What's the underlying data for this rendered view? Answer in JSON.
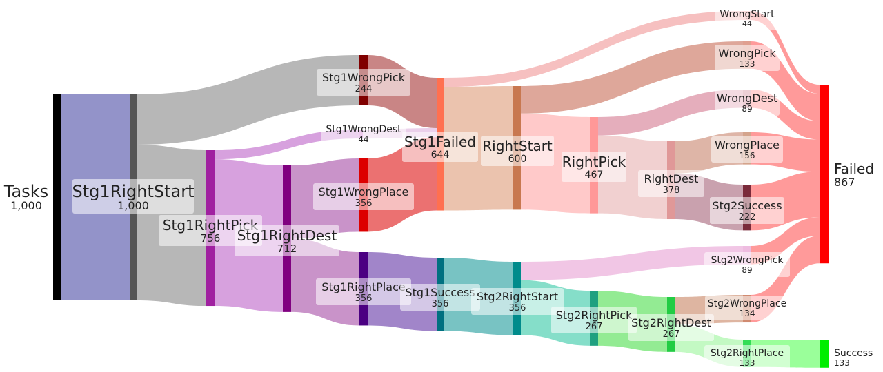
{
  "chart_data": {
    "type": "sankey",
    "title": "",
    "nodes": [
      {
        "id": "Tasks",
        "label": "Tasks",
        "value_label": "1,000",
        "value": 1000,
        "color": "#000000"
      },
      {
        "id": "Stg1RightStart",
        "label": "Stg1RightStart",
        "value_label": "1,000",
        "value": 1000,
        "color": "#555555"
      },
      {
        "id": "Stg1RightPick",
        "label": "Stg1RightPick",
        "value_label": "756",
        "value": 756,
        "color": "#a020a0"
      },
      {
        "id": "Stg1RightDest",
        "label": "Stg1RightDest",
        "value_label": "712",
        "value": 712,
        "color": "#800080"
      },
      {
        "id": "Stg1WrongPick",
        "label": "Stg1WrongPick",
        "value_label": "244",
        "value": 244,
        "color": "#800000"
      },
      {
        "id": "Stg1WrongDest",
        "label": "Stg1WrongDest",
        "value_label": "44",
        "value": 44,
        "color": "#d88ad8"
      },
      {
        "id": "Stg1WrongPlace",
        "label": "Stg1WrongPlace",
        "value_label": "356",
        "value": 356,
        "color": "#dd0000"
      },
      {
        "id": "Stg1RightPlace",
        "label": "Stg1RightPlace",
        "value_label": "356",
        "value": 356,
        "color": "#4b0082"
      },
      {
        "id": "Stg1Failed",
        "label": "Stg1Failed",
        "value_label": "644",
        "value": 644,
        "color": "#ff7050"
      },
      {
        "id": "Stg1Success",
        "label": "Stg1Success",
        "value_label": "356",
        "value": 356,
        "color": "#007080"
      },
      {
        "id": "RightStart",
        "label": "RightStart",
        "value_label": "600",
        "value": 600,
        "color": "#c87850"
      },
      {
        "id": "Stg2RightStart",
        "label": "Stg2RightStart",
        "value_label": "356",
        "value": 356,
        "color": "#008b8b"
      },
      {
        "id": "RightPick",
        "label": "RightPick",
        "value_label": "467",
        "value": 467,
        "color": "#ff9898"
      },
      {
        "id": "Stg2RightPick",
        "label": "Stg2RightPick",
        "value_label": "267",
        "value": 267,
        "color": "#20a080"
      },
      {
        "id": "RightDest",
        "label": "RightDest",
        "value_label": "378",
        "value": 378,
        "color": "#e09898"
      },
      {
        "id": "Stg2RightDest",
        "label": "Stg2RightDest",
        "value_label": "267",
        "value": 267,
        "color": "#22cc44"
      },
      {
        "id": "WrongStart",
        "label": "WrongStart",
        "value_label": "44",
        "value": 44,
        "color": "#f5b5b5"
      },
      {
        "id": "WrongPick",
        "label": "WrongPick",
        "value_label": "133",
        "value": 133,
        "color": "#e0a090"
      },
      {
        "id": "WrongDest",
        "label": "WrongDest",
        "value_label": "89",
        "value": 89,
        "color": "#d894a4"
      },
      {
        "id": "WrongPlace",
        "label": "WrongPlace",
        "value_label": "156",
        "value": 156,
        "color": "#d4a48c"
      },
      {
        "id": "Stg2Success",
        "label": "Stg2Success",
        "value_label": "222",
        "value": 222,
        "color": "#7a2a3a"
      },
      {
        "id": "Stg2WrongPick",
        "label": "Stg2WrongPick",
        "value_label": "89",
        "value": 89,
        "color": "#eebce0"
      },
      {
        "id": "Stg2WrongPlace",
        "label": "Stg2WrongPlace",
        "value_label": "134",
        "value": 134,
        "color": "#d08a70"
      },
      {
        "id": "Stg2RightPlace",
        "label": "Stg2RightPlace",
        "value_label": "133",
        "value": 133,
        "color": "#33dd55"
      },
      {
        "id": "Failed",
        "label": "Failed",
        "value_label": "867",
        "value": 867,
        "color": "#ff0000"
      },
      {
        "id": "Success",
        "label": "Success",
        "value_label": "133",
        "value": 133,
        "color": "#00ee00"
      }
    ],
    "links": [
      {
        "source": "Tasks",
        "target": "Stg1RightStart",
        "value": 1000,
        "color": "#8080c0"
      },
      {
        "source": "Stg1RightStart",
        "target": "Stg1WrongPick",
        "value": 244,
        "color": "#aaaaaa"
      },
      {
        "source": "Stg1RightStart",
        "target": "Stg1RightPick",
        "value": 756,
        "color": "#aaaaaa"
      },
      {
        "source": "Stg1RightPick",
        "target": "Stg1WrongDest",
        "value": 44,
        "color": "#d090d8"
      },
      {
        "source": "Stg1RightPick",
        "target": "Stg1RightDest",
        "value": 712,
        "color": "#d090d8"
      },
      {
        "source": "Stg1RightDest",
        "target": "Stg1WrongPlace",
        "value": 356,
        "color": "#c080c0"
      },
      {
        "source": "Stg1RightDest",
        "target": "Stg1RightPlace",
        "value": 356,
        "color": "#c080c0"
      },
      {
        "source": "Stg1WrongPick",
        "target": "Stg1Failed",
        "value": 244,
        "color": "#c07070"
      },
      {
        "source": "Stg1WrongDest",
        "target": "Stg1Failed",
        "value": 44,
        "color": "#e8c8e8"
      },
      {
        "source": "Stg1WrongPlace",
        "target": "Stg1Failed",
        "value": 356,
        "color": "#e85858"
      },
      {
        "source": "Stg1RightPlace",
        "target": "Stg1Success",
        "value": 356,
        "color": "#9070c0"
      },
      {
        "source": "Stg1Failed",
        "target": "WrongStart",
        "value": 44,
        "color": "#f5b5b5"
      },
      {
        "source": "Stg1Failed",
        "target": "RightStart",
        "value": 600,
        "color": "#e8b8a0"
      },
      {
        "source": "Stg1Success",
        "target": "Stg2RightStart",
        "value": 356,
        "color": "#60b8b8"
      },
      {
        "source": "RightStart",
        "target": "WrongPick",
        "value": 133,
        "color": "#d89888"
      },
      {
        "source": "RightStart",
        "target": "RightPick",
        "value": 467,
        "color": "#ffc0c0"
      },
      {
        "source": "Stg2RightStart",
        "target": "Stg2WrongPick",
        "value": 89,
        "color": "#eebce0"
      },
      {
        "source": "Stg2RightStart",
        "target": "Stg2RightPick",
        "value": 267,
        "color": "#70d8c0"
      },
      {
        "source": "RightPick",
        "target": "WrongDest",
        "value": 89,
        "color": "#e0a0b0"
      },
      {
        "source": "RightPick",
        "target": "RightDest",
        "value": 378,
        "color": "#eec8c8"
      },
      {
        "source": "Stg2RightPick",
        "target": "Stg2RightDest",
        "value": 267,
        "color": "#80e880"
      },
      {
        "source": "RightDest",
        "target": "WrongPlace",
        "value": 156,
        "color": "#d8a898"
      },
      {
        "source": "RightDest",
        "target": "Stg2Success",
        "value": 222,
        "color": "#c090a0"
      },
      {
        "source": "Stg2RightDest",
        "target": "Stg2WrongPlace",
        "value": 134,
        "color": "#d8a890"
      },
      {
        "source": "Stg2RightDest",
        "target": "Stg2RightPlace",
        "value": 133,
        "color": "#b8f8b8"
      },
      {
        "source": "WrongStart",
        "target": "Failed",
        "value": 44,
        "color": "#ff8888"
      },
      {
        "source": "WrongPick",
        "target": "Failed",
        "value": 133,
        "color": "#ff8888"
      },
      {
        "source": "WrongDest",
        "target": "Failed",
        "value": 89,
        "color": "#ff8888"
      },
      {
        "source": "WrongPlace",
        "target": "Failed",
        "value": 156,
        "color": "#ff8888"
      },
      {
        "source": "Stg2Success",
        "target": "Failed",
        "value": 222,
        "color": "#ff8888"
      },
      {
        "source": "Stg2WrongPick",
        "target": "Failed",
        "value": 89,
        "color": "#ff8888"
      },
      {
        "source": "Stg2WrongPlace",
        "target": "Failed",
        "value": 134,
        "color": "#ff8888"
      },
      {
        "source": "Stg2RightPlace",
        "target": "Success",
        "value": 133,
        "color": "#88ff88"
      }
    ]
  }
}
